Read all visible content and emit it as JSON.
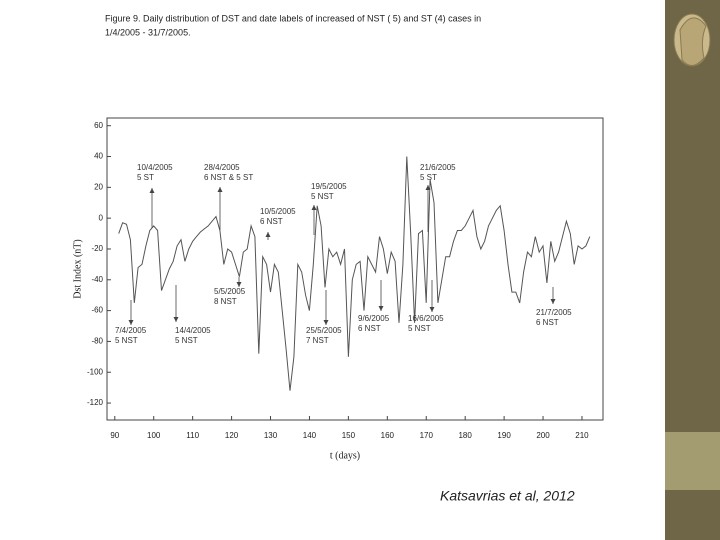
{
  "caption": [
    "Figure 9. Daily distribution of DST and date labels of increased of NST ( 5) and ST (4) cases in",
    "1/4/2005 - 31/7/2005."
  ],
  "credit": "Katsavrias et al, 2012",
  "chart_data": {
    "type": "line",
    "x_label": "t (days)",
    "y_label": "Dst Index (nT)",
    "xlim": [
      88,
      215.4
    ],
    "ylim": [
      -131,
      65
    ],
    "xticks": [
      90,
      100,
      110,
      120,
      130,
      140,
      150,
      160,
      170,
      180,
      190,
      200,
      210
    ],
    "yticks": [
      -120,
      -100,
      -80,
      -60,
      -40,
      -20,
      0,
      20,
      40,
      60
    ],
    "color": "#555555",
    "x": [
      91,
      92,
      93,
      94,
      95,
      96,
      97,
      98,
      99,
      100,
      101,
      102,
      103,
      104,
      105,
      106,
      107,
      108,
      109,
      110,
      111,
      112,
      113,
      114,
      115,
      116,
      117,
      118,
      119,
      120,
      121,
      122,
      123,
      124,
      125,
      126,
      127,
      128,
      129,
      130,
      131,
      132,
      133,
      134,
      135,
      136,
      137,
      138,
      139,
      140,
      141,
      142,
      143,
      144,
      145,
      146,
      147,
      148,
      149,
      150,
      151,
      152,
      153,
      154,
      155,
      156,
      157,
      158,
      159,
      160,
      161,
      162,
      163,
      164,
      165,
      166,
      167,
      168,
      169,
      170,
      171,
      172,
      173,
      174,
      175,
      176,
      177,
      178,
      179,
      180,
      181,
      182,
      183,
      184,
      185,
      186,
      187,
      188,
      189,
      190,
      191,
      192,
      193,
      194,
      195,
      196,
      197,
      198,
      199,
      200,
      201,
      202,
      203,
      204,
      205,
      206,
      207,
      208,
      209,
      210,
      211,
      212
    ],
    "values": [
      -10,
      -3,
      -4,
      -14,
      -55,
      -32,
      -30,
      -18,
      -8,
      -5,
      -8,
      -47,
      -40,
      -33,
      -28,
      -18,
      -14,
      -28,
      -20,
      -15,
      -12,
      -9,
      -7,
      -5,
      -2,
      1,
      -8,
      -30,
      -20,
      -22,
      -30,
      -38,
      -22,
      -20,
      -5,
      -12,
      -88,
      -25,
      -30,
      -48,
      -30,
      -35,
      -60,
      -85,
      -112,
      -90,
      -30,
      -35,
      -50,
      -60,
      -30,
      8,
      -5,
      -45,
      -20,
      -25,
      -22,
      -30,
      -20,
      -90,
      -40,
      -30,
      -28,
      -60,
      -25,
      -30,
      -35,
      -12,
      -20,
      -36,
      -22,
      -28,
      -68,
      -30,
      40,
      -10,
      -68,
      -10,
      -8,
      -55,
      25,
      10,
      -55,
      -40,
      -25,
      -25,
      -15,
      -8,
      -8,
      -5,
      0,
      5,
      -12,
      -20,
      -15,
      -5,
      0,
      5,
      8,
      -8,
      -30,
      -48,
      -48,
      -55,
      -35,
      -22,
      -25,
      -12,
      -22,
      -18,
      -42,
      -15,
      -28,
      -22,
      -12,
      -2,
      -10,
      -30,
      -18,
      -20,
      -18,
      -12
    ],
    "annotations": [
      {
        "lines": [
          "10/4/2005",
          "5 ST"
        ]
      },
      {
        "lines": [
          "28/4/2005",
          "6 NST & 5 ST"
        ]
      },
      {
        "lines": [
          "19/5/2005",
          "5 NST"
        ]
      },
      {
        "lines": [
          "10/5/2005",
          "6 NST"
        ]
      },
      {
        "lines": [
          "21/6/2005",
          "5 ST"
        ]
      },
      {
        "lines": [
          "5/5/2005",
          "8 NST"
        ]
      },
      {
        "lines": [
          "7/4/2005",
          "5 NST"
        ]
      },
      {
        "lines": [
          "14/4/2005",
          "5 NST"
        ]
      },
      {
        "lines": [
          "9/6/2005",
          "6 NST"
        ]
      },
      {
        "lines": [
          "16/6/2005",
          "5 NST"
        ]
      },
      {
        "lines": [
          "25/5/2005",
          "7 NST"
        ]
      },
      {
        "lines": [
          "21/7/2005",
          "6 NST"
        ]
      }
    ]
  }
}
